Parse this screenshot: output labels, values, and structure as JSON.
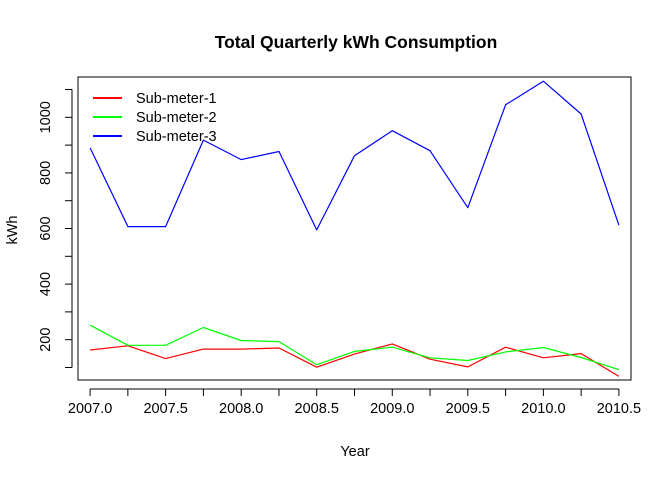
{
  "chart_data": {
    "type": "line",
    "title": "Total Quarterly kWh Consumption",
    "xlabel": "Year",
    "ylabel": "kWh",
    "xlim": [
      2006.92,
      2010.58
    ],
    "ylim": [
      55,
      1145
    ],
    "x_ticks": [
      2007.0,
      2007.5,
      2008.0,
      2008.5,
      2009.0,
      2009.5,
      2010.0,
      2010.5
    ],
    "x_tick_labels": [
      "2007.0",
      "2007.5",
      "2008.0",
      "2008.5",
      "2009.0",
      "2009.5",
      "2010.0",
      "2010.5"
    ],
    "x_minor_ticks": [
      2007.25,
      2007.75,
      2008.25,
      2008.75,
      2009.25,
      2009.75,
      2010.25
    ],
    "y_ticks": [
      100,
      200,
      300,
      400,
      500,
      600,
      700,
      800,
      900,
      1000,
      1100
    ],
    "y_tick_labels": [
      "200",
      "400",
      "600",
      "800",
      "1000"
    ],
    "y_tick_label_values": [
      200,
      400,
      600,
      800,
      1000
    ],
    "grid": false,
    "legend_position": "top-left",
    "x": [
      2007.0,
      2007.25,
      2007.5,
      2007.75,
      2008.0,
      2008.25,
      2008.5,
      2008.75,
      2009.0,
      2009.25,
      2009.5,
      2009.75,
      2010.0,
      2010.25,
      2010.5
    ],
    "series": [
      {
        "name": "Sub-meter-1",
        "color": "#ff0000",
        "values": [
          163,
          178,
          132,
          166,
          166,
          170,
          101,
          148,
          185,
          130,
          102,
          173,
          135,
          150,
          68
        ]
      },
      {
        "name": "Sub-meter-2",
        "color": "#00ff00",
        "values": [
          252,
          180,
          180,
          244,
          197,
          193,
          110,
          158,
          173,
          135,
          125,
          156,
          172,
          136,
          92
        ]
      },
      {
        "name": "Sub-meter-3",
        "color": "#0000ff",
        "values": [
          890,
          607,
          607,
          918,
          848,
          877,
          595,
          862,
          952,
          880,
          675,
          1045,
          1130,
          1012,
          612
        ]
      }
    ]
  }
}
